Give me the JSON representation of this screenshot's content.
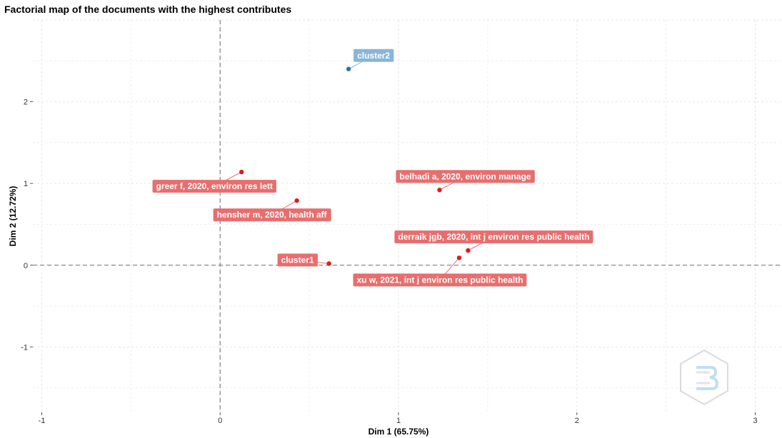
{
  "chart_data": {
    "type": "scatter",
    "title": "Factorial map of the documents with the highest contributes",
    "xlabel": "Dim 1 (65.75%)",
    "ylabel": "Dim 2 (12.72%)",
    "xlim": [
      -1.05,
      3.15
    ],
    "ylim": [
      -1.8,
      3.0
    ],
    "xticks": [
      -1,
      0,
      1,
      2,
      3
    ],
    "yticks": [
      -1,
      0,
      1,
      2
    ],
    "grid": true,
    "reference_lines": {
      "x": 0,
      "y": 0
    },
    "series": [
      {
        "name": "cluster1",
        "color": "#E31A1C",
        "label_color": "#E86E6E",
        "points": [
          {
            "x": 0.12,
            "y": 1.14,
            "label": "greer f, 2020, environ res lett"
          },
          {
            "x": 0.43,
            "y": 0.79,
            "label": "hensher m, 2020, health aff"
          },
          {
            "x": 1.23,
            "y": 0.92,
            "label": "belhadi a, 2020, environ manage"
          },
          {
            "x": 1.39,
            "y": 0.18,
            "label": "derraik jgb, 2020, int j environ res public health"
          },
          {
            "x": 1.34,
            "y": 0.09,
            "label": "xu w, 2021, int j environ res public health"
          },
          {
            "x": 0.61,
            "y": 0.02,
            "label": "cluster1"
          }
        ]
      },
      {
        "name": "cluster2",
        "color": "#1F78B4",
        "label_color": "#8AB6D6",
        "points": [
          {
            "x": 0.72,
            "y": 2.4,
            "label": "cluster2"
          }
        ]
      }
    ]
  },
  "watermark": {
    "icon": "bibliometrix-logo-icon"
  }
}
